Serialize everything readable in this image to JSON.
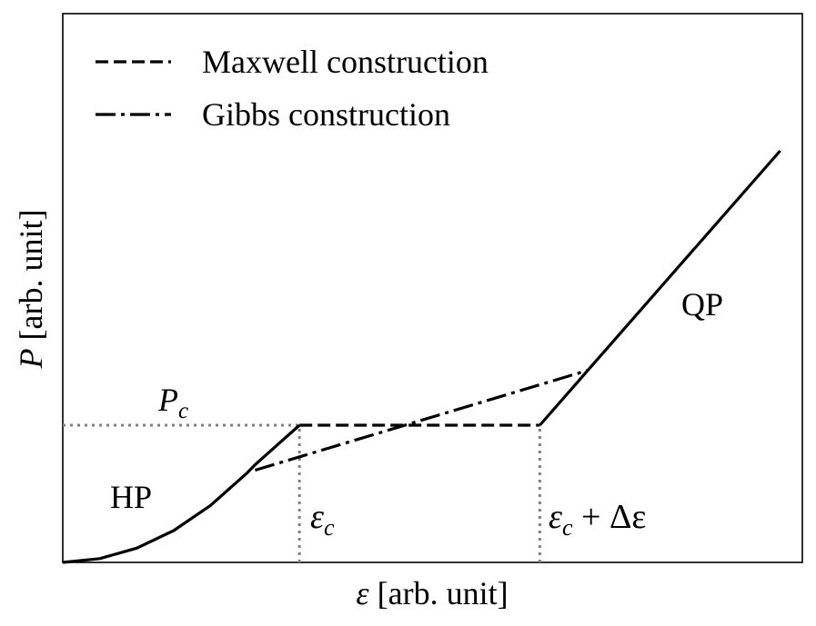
{
  "chart_data": {
    "type": "line",
    "xlabel": {
      "symbol": "ε",
      "text": " [arb. unit]"
    },
    "ylabel": {
      "symbol": "P",
      "text": " [arb. unit]"
    },
    "xlim": [
      0,
      1
    ],
    "ylim": [
      0,
      1
    ],
    "grid": false,
    "legend_position": "top-left",
    "series": [
      {
        "name": "",
        "style": "solid",
        "segments": [
          [
            [
              0,
              0
            ],
            [
              0.05,
              0.007
            ],
            [
              0.1,
              0.026
            ],
            [
              0.15,
              0.058
            ],
            [
              0.2,
              0.104
            ],
            [
              0.25,
              0.164
            ],
            [
              0.26,
              0.178
            ]
          ],
          [
            [
              0.26,
              0.178
            ],
            [
              0.32,
              0.25
            ]
          ],
          [
            [
              0.645,
              0.25
            ],
            [
              0.71,
              0.35
            ],
            [
              0.97,
              0.75
            ]
          ]
        ]
      },
      {
        "name": "Maxwell construction",
        "style": "dashed",
        "segments": [
          [
            [
              0.32,
              0.25
            ],
            [
              0.645,
              0.25
            ]
          ]
        ]
      },
      {
        "name": "Gibbs construction",
        "style": "dashdot",
        "segments": [
          [
            [
              0.26,
              0.168
            ],
            [
              0.71,
              0.35
            ]
          ]
        ]
      }
    ],
    "reference_lines": [
      {
        "orientation": "horizontal",
        "value": 0.25,
        "from": 0,
        "to": 0.32,
        "style": "dotted"
      },
      {
        "orientation": "vertical",
        "value": 0.32,
        "from": 0,
        "to": 0.25,
        "style": "dotted"
      },
      {
        "orientation": "vertical",
        "value": 0.645,
        "from": 0,
        "to": 0.25,
        "style": "dotted"
      }
    ],
    "annotations": [
      {
        "id": "pc",
        "symbol": "P",
        "sub": "c",
        "text": ""
      },
      {
        "id": "hp",
        "text": "HP"
      },
      {
        "id": "qp",
        "text": "QP"
      },
      {
        "id": "ec",
        "symbol": "ε",
        "sub": "c",
        "text": ""
      },
      {
        "id": "ecde",
        "symbol": "ε",
        "sub": "c",
        "text": " + Δε"
      }
    ],
    "colors": {
      "line": "#000000",
      "reference": "#808080"
    }
  }
}
